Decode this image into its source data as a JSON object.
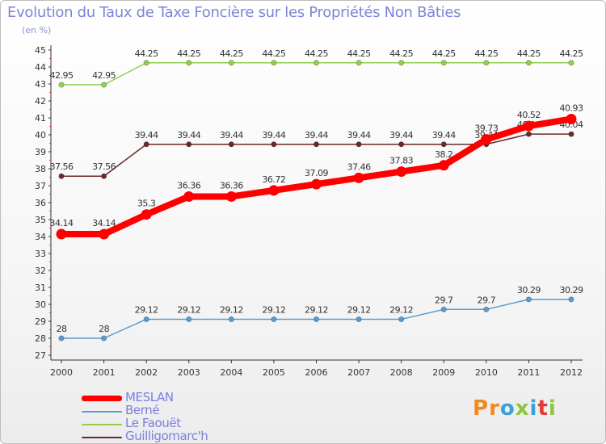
{
  "title": "Evolution du Taux de Taxe Foncière sur les Propriétés Non Bâties",
  "subtitle": "(en %)",
  "logo": {
    "text": "Proxiti",
    "colors": [
      "#f08a1c",
      "#f08a1c",
      "#3aa0d8",
      "#8cc63f",
      "#3aa0d8",
      "#e53935",
      "#8cc63f"
    ]
  },
  "chart_data": {
    "type": "line",
    "x": [
      "2000",
      "2001",
      "2002",
      "2003",
      "2004",
      "2005",
      "2006",
      "2007",
      "2008",
      "2009",
      "2010",
      "2011",
      "2012"
    ],
    "ylim": [
      27,
      45
    ],
    "yticks": [
      "27",
      "28",
      "29",
      "30",
      "31",
      "32",
      "33",
      "34",
      "35",
      "36",
      "37",
      "38",
      "39",
      "40",
      "41",
      "42",
      "43",
      "44",
      "45"
    ],
    "grid": false,
    "legend_position": "bottom-left",
    "series": [
      {
        "name": "MESLAN",
        "color": "#ff0000",
        "emphasis": true,
        "values": [
          34.14,
          34.14,
          35.3,
          36.36,
          36.36,
          36.72,
          37.09,
          37.46,
          37.83,
          38.2,
          39.73,
          40.52,
          40.93
        ],
        "labels": [
          "34.14",
          "34.14",
          "35.3",
          "36.36",
          "36.36",
          "36.72",
          "37.09",
          "37.46",
          "37.83",
          "38.2",
          "39.73",
          "40.52",
          "40.93"
        ]
      },
      {
        "name": "Berné",
        "color": "#5b9ccf",
        "emphasis": false,
        "values": [
          28,
          28,
          29.12,
          29.12,
          29.12,
          29.12,
          29.12,
          29.12,
          29.12,
          29.7,
          29.7,
          30.29,
          30.29
        ],
        "labels": [
          "28",
          "28",
          "29.12",
          "29.12",
          "29.12",
          "29.12",
          "29.12",
          "29.12",
          "29.12",
          "29.7",
          "29.7",
          "30.29",
          "30.29"
        ]
      },
      {
        "name": "Le Faouët",
        "color": "#8fd14f",
        "emphasis": false,
        "values": [
          42.95,
          42.95,
          44.25,
          44.25,
          44.25,
          44.25,
          44.25,
          44.25,
          44.25,
          44.25,
          44.25,
          44.25,
          44.25
        ],
        "labels": [
          "42.95",
          "42.95",
          "44.25",
          "44.25",
          "44.25",
          "44.25",
          "44.25",
          "44.25",
          "44.25",
          "44.25",
          "44.25",
          "44.25",
          "44.25"
        ]
      },
      {
        "name": "Guilligomarc'h",
        "color": "#6b2a2a",
        "emphasis": false,
        "values": [
          37.56,
          37.56,
          39.44,
          39.44,
          39.44,
          39.44,
          39.44,
          39.44,
          39.44,
          39.44,
          39.44,
          40.04,
          40.04
        ],
        "labels": [
          "37.56",
          "37.56",
          "39.44",
          "39.44",
          "39.44",
          "39.44",
          "39.44",
          "39.44",
          "39.44",
          "39.44",
          "39.44",
          "40.04",
          "40.04"
        ]
      }
    ]
  }
}
